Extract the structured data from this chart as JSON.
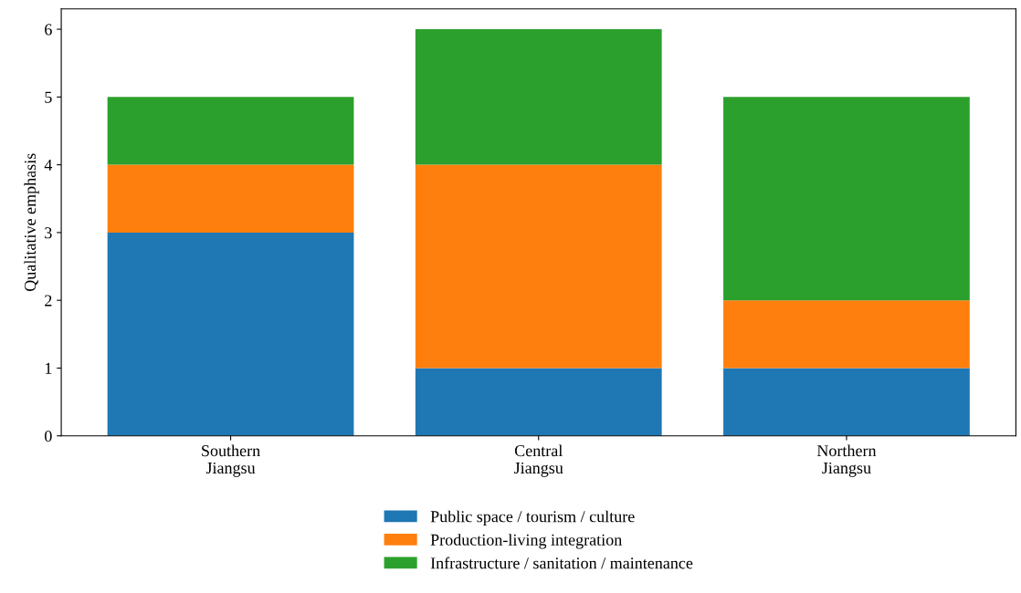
{
  "chart_data": {
    "type": "bar",
    "stacked": true,
    "ylabel": "Qualitative emphasis",
    "categories": [
      "Southern\nJiangsu",
      "Central\nJiangsu",
      "Northern\nJiangsu"
    ],
    "series": [
      {
        "name": "Public space / tourism / culture",
        "color": "#1f77b4",
        "values": [
          3,
          1,
          1
        ]
      },
      {
        "name": "Production-living integration",
        "color": "#ff7f0e",
        "values": [
          1,
          3,
          1
        ]
      },
      {
        "name": "Infrastructure / sanitation / maintenance",
        "color": "#2ca02c",
        "values": [
          1,
          2,
          3
        ]
      }
    ],
    "ylim": [
      0,
      6.3
    ],
    "yticks": [
      0,
      1,
      2,
      3,
      4,
      5,
      6
    ],
    "grid": false,
    "legend": "bottom"
  }
}
